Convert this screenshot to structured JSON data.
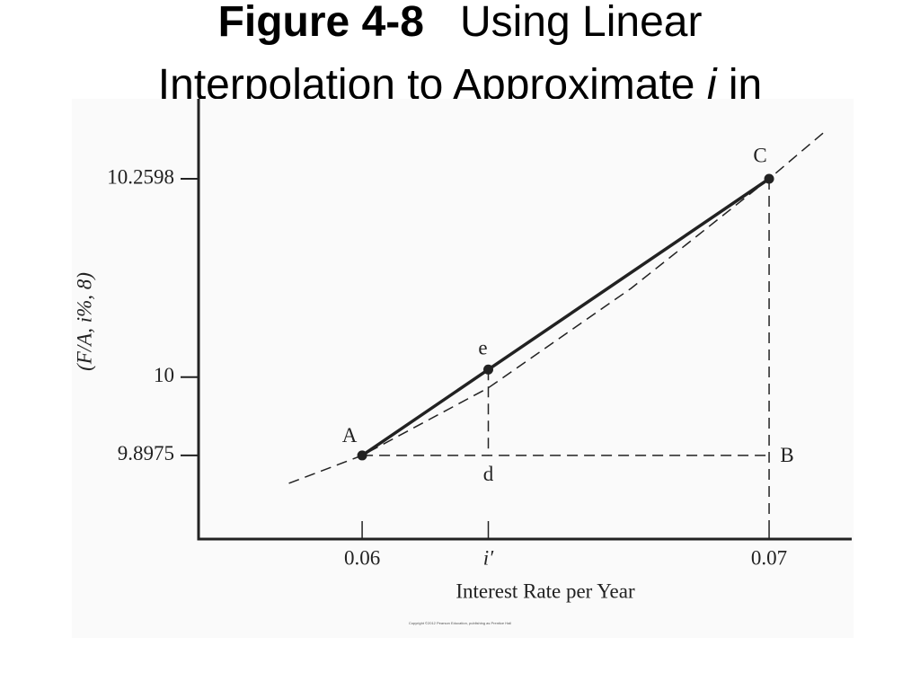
{
  "chart_data": {
    "type": "line",
    "title": {
      "number": "Figure 4-8",
      "text_1": "Using Linear",
      "text_2": "Interpolation to Approximate ",
      "variable": "i",
      "text_3": " in"
    },
    "ylabel": "(F/A, i%, 8)",
    "xlabel": "Interest Rate per Year",
    "xlim": [
      0.05598,
      0.07203
    ],
    "ylim": [
      9.788,
      10.3645
    ],
    "xticks": [
      0.06,
      {
        "value": 0.0631,
        "label": "i′"
      },
      0.07
    ],
    "yticks": [
      9.8975,
      10,
      10.2598
    ],
    "series": [
      {
        "style": "solid",
        "color": "#222222",
        "x": [
          0.06,
          0.0631,
          0.07
        ],
        "values": [
          9.8975,
          10.01,
          10.2598
        ]
      },
      {
        "style": "dashed",
        "color": "#222222",
        "x": [
          0.0582,
          0.06,
          0.0631,
          0.0666,
          0.07,
          0.0714
        ],
        "values": [
          9.861,
          9.8975,
          9.986,
          10.116,
          10.2598,
          10.323
        ]
      }
    ],
    "points": [
      {
        "label": "A",
        "x": 0.06,
        "y": 9.8975
      },
      {
        "label": "e",
        "x": 0.0631,
        "y": 10.01
      },
      {
        "label": "C",
        "x": 0.07,
        "y": 10.2598
      }
    ],
    "markers": [
      {
        "label": "d",
        "x": 0.0631,
        "y": 9.8975
      },
      {
        "label": "B",
        "x": 0.07,
        "y": 9.8975
      }
    ],
    "copyright": "Copyright ©2012 Pearson Education, publishing as Prentice Hall"
  }
}
